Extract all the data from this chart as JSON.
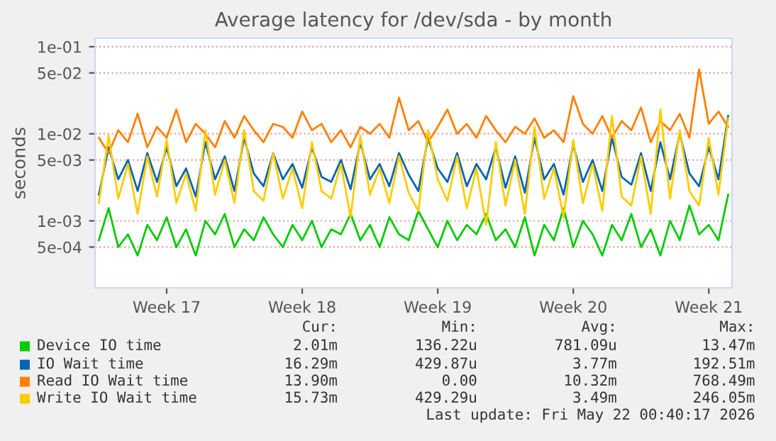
{
  "chart_data": {
    "type": "line",
    "title": "Average latency for /dev/sda - by month",
    "ylabel": "seconds",
    "categories": [
      null,
      null,
      null,
      null,
      null,
      null,
      null,
      "Week 17",
      null,
      null,
      null,
      null,
      null,
      null,
      null,
      null,
      null,
      null,
      null,
      null,
      null,
      "Week 18",
      null,
      null,
      null,
      null,
      null,
      null,
      null,
      null,
      null,
      null,
      null,
      null,
      null,
      "Week 19",
      null,
      null,
      null,
      null,
      null,
      null,
      null,
      null,
      null,
      null,
      null,
      null,
      null,
      "Week 20",
      null,
      null,
      null,
      null,
      null,
      null,
      null,
      null,
      null,
      null,
      null,
      null,
      null,
      "Week 21",
      null,
      null
    ],
    "series": [
      {
        "name": "Device IO time",
        "color": "#00cc00",
        "values": [
          0.0006,
          0.0014,
          0.0005,
          0.0007,
          0.0004,
          0.0009,
          0.0006,
          0.0011,
          0.0005,
          0.0008,
          0.0004,
          0.001,
          0.0007,
          0.0012,
          0.0005,
          0.0008,
          0.0006,
          0.0011,
          0.0007,
          0.0005,
          0.0009,
          0.0006,
          0.001,
          0.0005,
          0.0008,
          0.0007,
          0.0012,
          0.0006,
          0.0009,
          0.0005,
          0.0011,
          0.0007,
          0.0006,
          0.0013,
          0.0008,
          0.0005,
          0.001,
          0.0006,
          0.0009,
          0.0007,
          0.0012,
          0.0006,
          0.0008,
          0.0005,
          0.0011,
          0.0004,
          0.0009,
          0.0006,
          0.0014,
          0.0005,
          0.001,
          0.0007,
          0.0004,
          0.0009,
          0.0006,
          0.0012,
          0.0005,
          0.0008,
          0.0004,
          0.001,
          0.0006,
          0.0015,
          0.0007,
          0.0009,
          0.0006,
          0.002
        ]
      },
      {
        "name": "IO Wait time",
        "color": "#0066b3",
        "values": [
          0.002,
          0.007,
          0.003,
          0.005,
          0.0022,
          0.006,
          0.0028,
          0.007,
          0.0025,
          0.004,
          0.0019,
          0.008,
          0.003,
          0.0055,
          0.0022,
          0.009,
          0.0035,
          0.0025,
          0.006,
          0.003,
          0.0045,
          0.0024,
          0.007,
          0.0032,
          0.0028,
          0.005,
          0.0023,
          0.008,
          0.003,
          0.0045,
          0.0025,
          0.006,
          0.0034,
          0.0022,
          0.009,
          0.004,
          0.0028,
          0.006,
          0.0025,
          0.0045,
          0.003,
          0.007,
          0.0024,
          0.0055,
          0.0021,
          0.009,
          0.003,
          0.0045,
          0.002,
          0.0075,
          0.0028,
          0.005,
          0.0022,
          0.009,
          0.0032,
          0.0026,
          0.006,
          0.0022,
          0.008,
          0.003,
          0.01,
          0.0035,
          0.0025,
          0.007,
          0.003,
          0.016
        ]
      },
      {
        "name": "Read IO Wait time",
        "color": "#ff8000",
        "values": [
          0.009,
          0.006,
          0.011,
          0.008,
          0.017,
          0.007,
          0.012,
          0.009,
          0.019,
          0.008,
          0.013,
          0.01,
          0.007,
          0.014,
          0.009,
          0.016,
          0.011,
          0.008,
          0.013,
          0.012,
          0.009,
          0.018,
          0.011,
          0.013,
          0.008,
          0.011,
          0.007,
          0.012,
          0.01,
          0.013,
          0.009,
          0.026,
          0.011,
          0.014,
          0.008,
          0.012,
          0.019,
          0.01,
          0.013,
          0.009,
          0.016,
          0.011,
          0.008,
          0.012,
          0.01,
          0.015,
          0.009,
          0.011,
          0.008,
          0.027,
          0.013,
          0.01,
          0.016,
          0.009,
          0.014,
          0.011,
          0.02,
          0.008,
          0.014,
          0.011,
          0.017,
          0.009,
          0.055,
          0.013,
          0.018,
          0.012
        ]
      },
      {
        "name": "Write IO Wait time",
        "color": "#ffcc00",
        "values": [
          0.0016,
          0.0095,
          0.0018,
          0.0045,
          0.0012,
          0.0055,
          0.0019,
          0.0085,
          0.0016,
          0.0035,
          0.0013,
          0.011,
          0.002,
          0.005,
          0.0016,
          0.011,
          0.0022,
          0.0017,
          0.006,
          0.0018,
          0.004,
          0.0014,
          0.008,
          0.0022,
          0.0018,
          0.0045,
          0.0011,
          0.0095,
          0.002,
          0.004,
          0.0016,
          0.0055,
          0.0021,
          0.0013,
          0.011,
          0.003,
          0.0017,
          0.0055,
          0.0014,
          0.004,
          0.0009,
          0.008,
          0.0015,
          0.005,
          0.0012,
          0.012,
          0.0018,
          0.004,
          0.0011,
          0.0085,
          0.0016,
          0.0045,
          0.0013,
          0.016,
          0.0019,
          0.0015,
          0.0055,
          0.0012,
          0.019,
          0.0018,
          0.011,
          0.0022,
          0.0015,
          0.009,
          0.002,
          0.015
        ]
      }
    ],
    "log": "y",
    "ylim": [
      0.00017,
      0.125
    ],
    "yticks": [
      {
        "value": 0.0005,
        "label": "5e-04"
      },
      {
        "value": 0.001,
        "label": "1e-03"
      },
      {
        "value": 0.005,
        "label": "5e-03"
      },
      {
        "value": 0.01,
        "label": "1e-02"
      },
      {
        "value": 0.05,
        "label": "5e-02"
      },
      {
        "value": 0.1,
        "label": "1e-01"
      }
    ],
    "grid": "y",
    "legend": "bottom",
    "line_style": "solid",
    "marker": "none",
    "annotations": [
      "Cur:",
      "Min:",
      "Avg:",
      "Max:",
      "2.01m",
      "136.22u",
      "781.09u",
      "13.47m",
      "16.29m",
      "429.87u",
      "3.77m",
      "192.51m",
      "13.90m",
      "0.00",
      "10.32m",
      "768.49m",
      "15.73m",
      "429.29u",
      "3.49m",
      "246.05m",
      "Last update: Fri May 22 00:40:17 2026"
    ]
  }
}
